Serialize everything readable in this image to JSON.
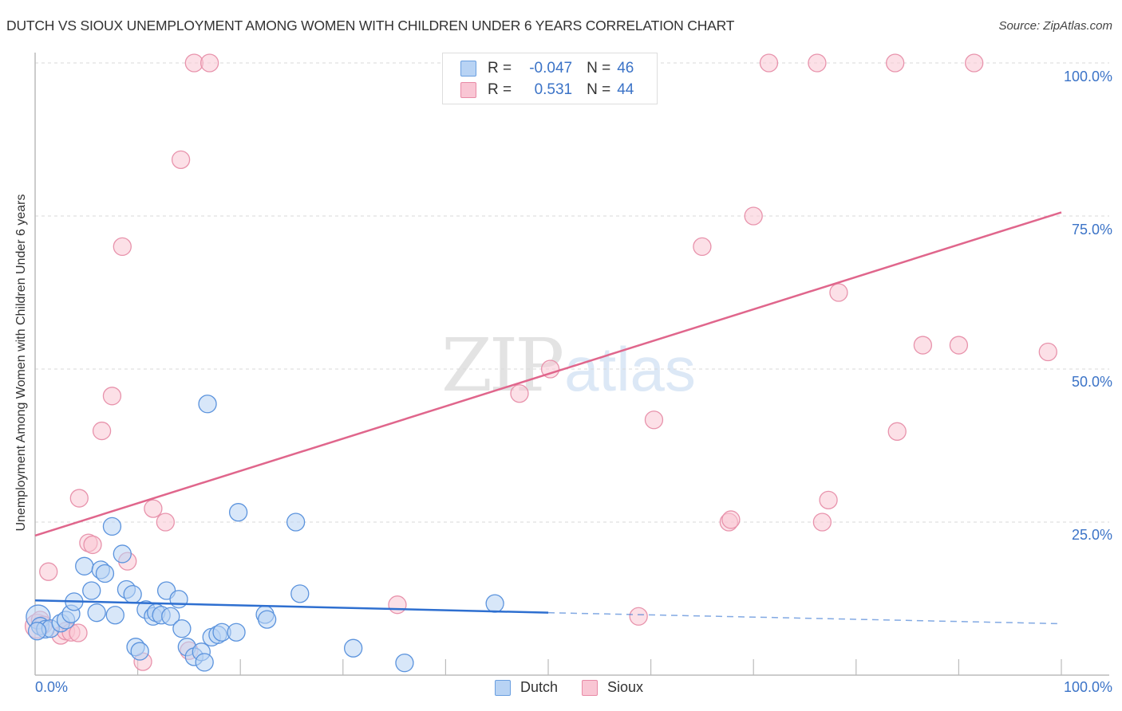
{
  "header": {
    "title": "DUTCH VS SIOUX UNEMPLOYMENT AMONG WOMEN WITH CHILDREN UNDER 6 YEARS CORRELATION CHART",
    "source": "Source: ZipAtlas.com"
  },
  "watermark": {
    "zip": "ZIP",
    "atlas": "atlas"
  },
  "axes": {
    "ylabel": "Unemployment Among Women with Children Under 6 years",
    "yticks": [
      "100.0%",
      "75.0%",
      "50.0%",
      "25.0%"
    ],
    "xtick_left": "0.0%",
    "xtick_right": "100.0%"
  },
  "legend": {
    "rows": [
      {
        "r_label": "R =",
        "r_value": "-0.047",
        "n_label": "N =",
        "n_value": "46",
        "color": "#b8d3f4",
        "border": "#6a9fe0"
      },
      {
        "r_label": "R =",
        "r_value": "0.531",
        "n_label": "N =",
        "n_value": "44",
        "color": "#f9c6d4",
        "border": "#e88aa6"
      }
    ]
  },
  "bottom_legend": {
    "dutch": "Dutch",
    "sioux": "Sioux"
  },
  "colors": {
    "dutch_fill": "#b8d3f4",
    "dutch_stroke": "#5b93dd",
    "dutch_line": "#2e6fd0",
    "sioux_fill": "#f9c6d4",
    "sioux_stroke": "#e893ac",
    "sioux_line": "#e0668c",
    "tick_text": "#3b73c7"
  },
  "chart_data": {
    "type": "scatter",
    "title": "DUTCH VS SIOUX UNEMPLOYMENT AMONG WOMEN WITH CHILDREN UNDER 6 YEARS CORRELATION CHART",
    "xlabel": "",
    "ylabel": "Unemployment Among Women with Children Under 6 years",
    "xlim": [
      0,
      100
    ],
    "ylim": [
      0,
      100
    ],
    "x_ticks": [
      "0.0%",
      "100.0%"
    ],
    "y_ticks": [
      "25.0%",
      "50.0%",
      "75.0%",
      "100.0%"
    ],
    "grid": "horizontal dashed",
    "legend_position": "top-center",
    "series": [
      {
        "name": "Dutch",
        "R": -0.047,
        "N": 46,
        "trend": {
          "x": [
            0,
            50,
            100
          ],
          "y": [
            12.2,
            10.2,
            8.4
          ],
          "solid_until_x": 50
        },
        "points": [
          [
            0.3,
            9.5
          ],
          [
            0.5,
            8.0
          ],
          [
            1.0,
            7.5
          ],
          [
            1.5,
            7.6
          ],
          [
            2.5,
            8.5
          ],
          [
            3.0,
            9.0
          ],
          [
            3.5,
            10.0
          ],
          [
            3.8,
            12.0
          ],
          [
            4.8,
            17.8
          ],
          [
            5.5,
            13.8
          ],
          [
            6.0,
            10.2
          ],
          [
            6.4,
            17.2
          ],
          [
            6.8,
            16.6
          ],
          [
            7.5,
            24.3
          ],
          [
            7.8,
            9.8
          ],
          [
            8.5,
            19.8
          ],
          [
            8.9,
            14.0
          ],
          [
            9.5,
            13.2
          ],
          [
            9.8,
            4.6
          ],
          [
            10.2,
            3.9
          ],
          [
            10.8,
            10.7
          ],
          [
            11.5,
            9.6
          ],
          [
            11.8,
            10.2
          ],
          [
            12.3,
            9.8
          ],
          [
            12.8,
            13.8
          ],
          [
            13.2,
            9.6
          ],
          [
            14.0,
            12.4
          ],
          [
            14.3,
            7.6
          ],
          [
            14.8,
            4.6
          ],
          [
            15.5,
            3.0
          ],
          [
            16.2,
            3.8
          ],
          [
            16.5,
            2.1
          ],
          [
            16.8,
            44.3
          ],
          [
            17.2,
            6.2
          ],
          [
            17.8,
            6.6
          ],
          [
            18.2,
            7.0
          ],
          [
            19.6,
            7.0
          ],
          [
            19.8,
            26.6
          ],
          [
            22.4,
            9.9
          ],
          [
            22.6,
            9.1
          ],
          [
            25.4,
            25.0
          ],
          [
            25.8,
            13.3
          ],
          [
            31.0,
            4.4
          ],
          [
            36.0,
            2.0
          ],
          [
            44.8,
            11.7
          ],
          [
            0.2,
            7.2
          ]
        ]
      },
      {
        "name": "Sioux",
        "R": 0.531,
        "N": 44,
        "trend": {
          "x": [
            0,
            100
          ],
          "y": [
            22.8,
            75.6
          ]
        },
        "points": [
          [
            0.2,
            8.0
          ],
          [
            0.5,
            9.0
          ],
          [
            1.3,
            16.9
          ],
          [
            2.5,
            6.5
          ],
          [
            3.0,
            7.2
          ],
          [
            3.5,
            7.0
          ],
          [
            4.2,
            6.9
          ],
          [
            4.3,
            28.9
          ],
          [
            5.2,
            21.6
          ],
          [
            5.6,
            21.3
          ],
          [
            6.5,
            39.9
          ],
          [
            7.5,
            45.6
          ],
          [
            8.5,
            70.0
          ],
          [
            9.0,
            18.6
          ],
          [
            10.5,
            2.2
          ],
          [
            11.5,
            27.2
          ],
          [
            12.7,
            25.0
          ],
          [
            14.2,
            84.2
          ],
          [
            15.0,
            4.0
          ],
          [
            15.5,
            100.0
          ],
          [
            17.0,
            100.0
          ],
          [
            35.3,
            11.5
          ],
          [
            47.2,
            46.0
          ],
          [
            50.2,
            50.0
          ],
          [
            55.0,
            100.0
          ],
          [
            55.8,
            100.0
          ],
          [
            58.8,
            9.6
          ],
          [
            60.3,
            41.7
          ],
          [
            65.0,
            70.0
          ],
          [
            67.6,
            25.0
          ],
          [
            67.8,
            25.4
          ],
          [
            70.0,
            75.0
          ],
          [
            71.5,
            100.0
          ],
          [
            76.2,
            100.0
          ],
          [
            76.7,
            25.0
          ],
          [
            77.3,
            28.6
          ],
          [
            78.3,
            62.5
          ],
          [
            83.8,
            100.0
          ],
          [
            84.0,
            39.8
          ],
          [
            86.5,
            53.9
          ],
          [
            90.0,
            53.9
          ],
          [
            91.5,
            100.0
          ],
          [
            98.7,
            52.8
          ],
          [
            0.8,
            8.2
          ]
        ]
      }
    ]
  }
}
